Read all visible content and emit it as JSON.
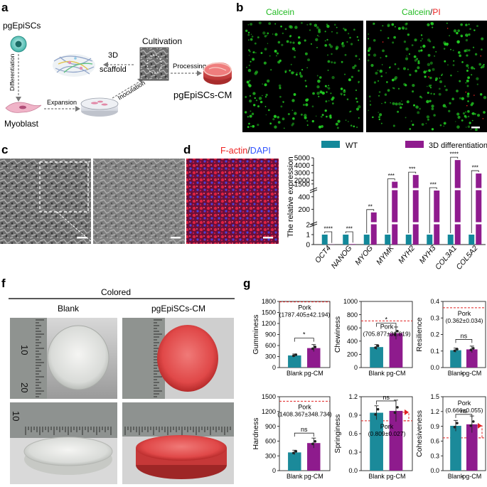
{
  "panels": {
    "a": {
      "label": "a",
      "stem_cell": "pgEpiSCs",
      "differentiation": "Differentiation",
      "myoblast": "Myoblast",
      "expansion": "Expansion",
      "inoculation": "Inoculation",
      "scaffold": "3D scaffold",
      "scaffold_line1": "3D",
      "scaffold_line2": "scaffold",
      "cultivation": "Cultivation",
      "processing": "Processing",
      "product": "pgEpiSCs-CM"
    },
    "b": {
      "label": "b",
      "left_title": "Calcein",
      "right_title_green": "Calcein",
      "right_title_sep": "/",
      "right_title_red": "PI"
    },
    "c": {
      "label": "c"
    },
    "d": {
      "label": "d",
      "title_red": "F-actin",
      "title_sep": "/",
      "title_blue": "DAPI"
    },
    "f": {
      "label": "f",
      "header": "Colored",
      "col_blank": "Blank",
      "col_cm": "pgEpiSCs-CM",
      "ruler_marks": [
        "10",
        "20",
        "10"
      ]
    },
    "g": {
      "label": "g"
    }
  },
  "colors": {
    "wt": "#13889a",
    "diff3d": "#8f1b8e",
    "teal_bar": "#1b8a9a",
    "purple_bar": "#8e1b8d",
    "pork_line": "#e02020",
    "calcein": "#22cc22",
    "pi": "#ee2222",
    "dapi": "#3355ff"
  },
  "chart_data": [
    {
      "type": "bar",
      "panel": "e",
      "title": "",
      "ylabel": "The relative expression",
      "legend": [
        "WT",
        "3D differentiation"
      ],
      "legend_position": "top",
      "categories": [
        "OCT4",
        "NANOG",
        "MYOG",
        "MYMK",
        "MYH2",
        "MYH3",
        "COL3A1",
        "COL5A2"
      ],
      "y_axis": "broken",
      "y_segments": [
        {
          "range": [
            0,
            2
          ],
          "ticks": [
            "0",
            "1",
            "2"
          ]
        },
        {
          "range": [
            0,
            500
          ],
          "ticks": [
            "200",
            "400"
          ]
        },
        {
          "range": [
            1000,
            5000
          ],
          "ticks": [
            "1500",
            "2000",
            "3000",
            "4000",
            "5000"
          ]
        }
      ],
      "series": [
        {
          "name": "WT",
          "values": [
            1,
            1,
            1,
            1,
            1,
            1,
            1,
            1
          ]
        },
        {
          "name": "3D differentiation",
          "values": [
            0.02,
            0.05,
            150,
            1800,
            2700,
            500,
            4700,
            2900
          ]
        }
      ],
      "significance": [
        "****",
        "***",
        "**",
        "***",
        "***",
        "***",
        "****",
        "***"
      ]
    },
    {
      "type": "bar",
      "panel": "g",
      "metric": "Gumminess",
      "ylabel": "Gumminess",
      "categories": [
        "Blank",
        "pg-CM"
      ],
      "values": [
        330,
        530
      ],
      "ylim": [
        0,
        1800
      ],
      "ticks": [
        "0",
        "300",
        "600",
        "900",
        "1200",
        "1500",
        "1800"
      ],
      "reference": {
        "label": "Pork",
        "value": "(1787.405±42.194)",
        "level": 1787.405
      },
      "significance": "*"
    },
    {
      "type": "bar",
      "panel": "g",
      "metric": "Chewiness",
      "ylabel": "Chewiness",
      "categories": [
        "Blank",
        "pg-CM"
      ],
      "values": [
        310,
        520
      ],
      "ylim": [
        0,
        1000
      ],
      "ticks": [
        "0",
        "200",
        "400",
        "600",
        "800",
        "1000"
      ],
      "reference": {
        "label": "Pork",
        "value": "(705.877±31.819)",
        "level": 705.877
      },
      "significance": "*"
    },
    {
      "type": "bar",
      "panel": "g",
      "metric": "Resilience",
      "ylabel": "Resilience",
      "categories": [
        "Blank",
        "pg-CM"
      ],
      "values": [
        0.105,
        0.11
      ],
      "ylim": [
        0,
        0.4
      ],
      "ticks": [
        "0.0",
        "0.1",
        "0.2",
        "0.3",
        "0.4"
      ],
      "reference": {
        "label": "Pork",
        "value": "(0.362±0.034)",
        "level": 0.362
      },
      "significance": "ns"
    },
    {
      "type": "bar",
      "panel": "g",
      "metric": "Hardness",
      "ylabel": "Hardness",
      "categories": [
        "Blank",
        "pg-CM"
      ],
      "values": [
        370,
        560
      ],
      "ylim": [
        0,
        1500
      ],
      "ticks": [
        "0",
        "300",
        "600",
        "900",
        "1200",
        "1500"
      ],
      "reference": {
        "label": "Pork",
        "value": "(1408.367±348.734)",
        "level": 1408.367
      },
      "significance": "ns"
    },
    {
      "type": "bar",
      "panel": "g",
      "metric": "Springiness",
      "ylabel": "Springiness",
      "categories": [
        "Blank",
        "pg-CM"
      ],
      "values": [
        0.94,
        0.97
      ],
      "ylim": [
        0,
        1.2
      ],
      "ticks": [
        "0.0",
        "0.3",
        "0.6",
        "0.9",
        "1.2"
      ],
      "reference": {
        "label": "Pork",
        "value": "(0.809±0.027)",
        "level": 0.809
      },
      "significance": "ns"
    },
    {
      "type": "bar",
      "panel": "g",
      "metric": "Cohesiveness",
      "ylabel": "Cohesiveness",
      "categories": [
        "Blank",
        "pg-CM"
      ],
      "values": [
        0.91,
        0.94
      ],
      "ylim": [
        0,
        1.5
      ],
      "ticks": [
        "0.0",
        "0.3",
        "0.6",
        "0.9",
        "1.2",
        "1.5"
      ],
      "reference": {
        "label": "Pork",
        "value": "(0.666±0.055)",
        "level": 0.666
      },
      "significance": "ns"
    }
  ]
}
